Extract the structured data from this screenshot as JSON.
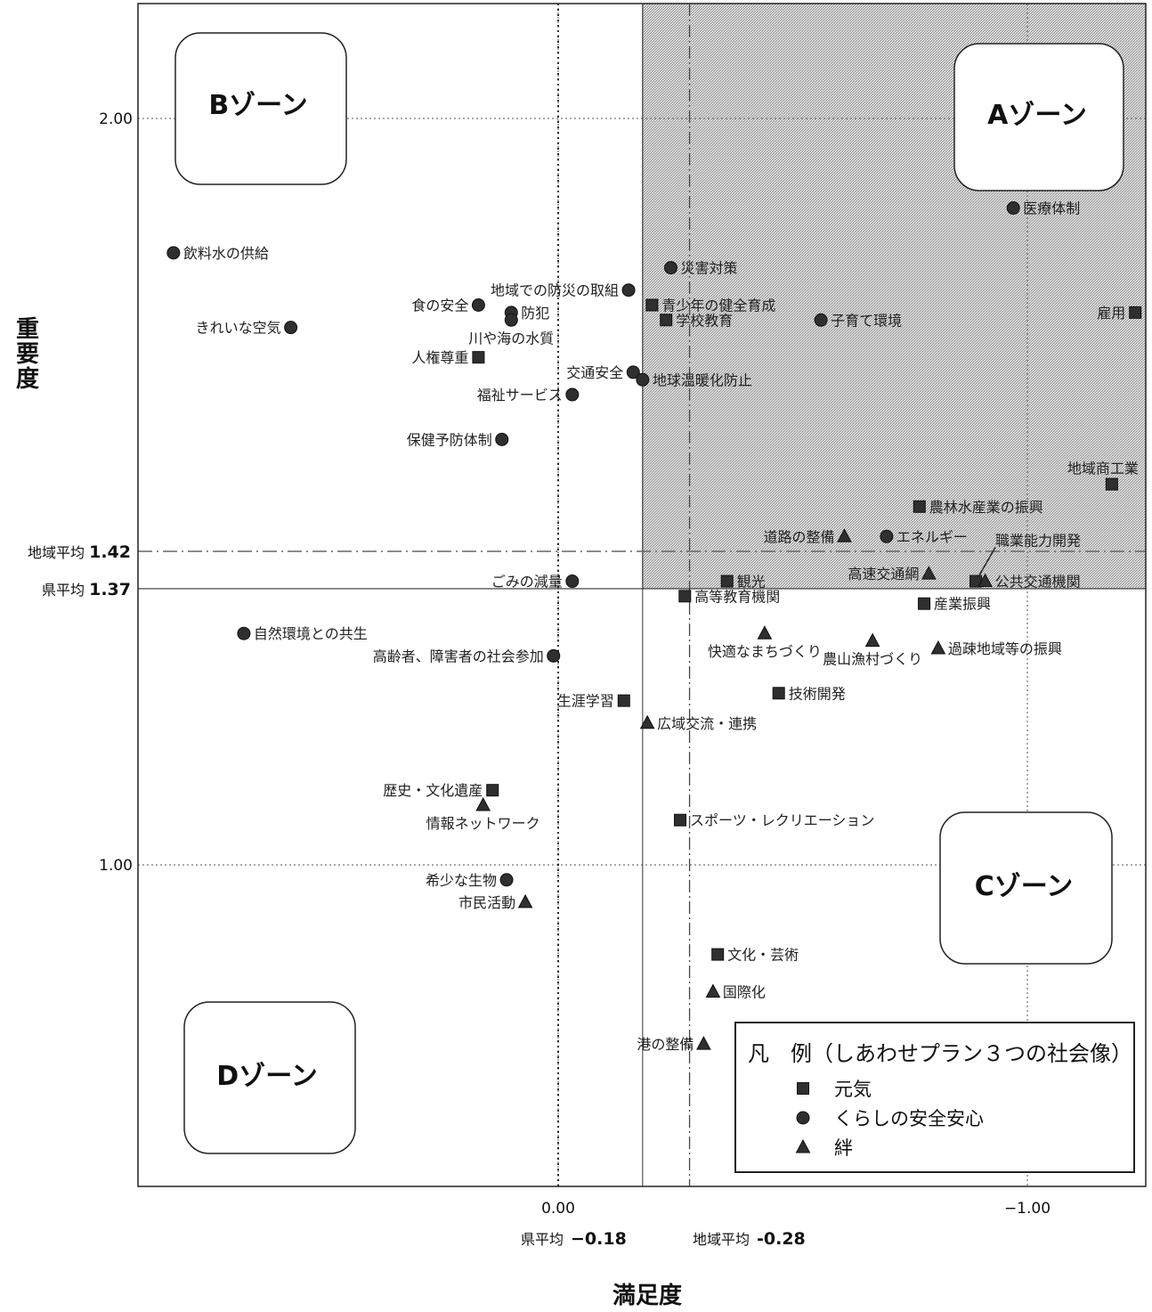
{
  "chart_data": {
    "type": "scatter",
    "xlabel": "満足度",
    "ylabel": "重要度",
    "x_axis_reversed": true,
    "xlim": [
      0.9,
      -1.25
    ],
    "ylim": [
      0.58,
      2.15
    ],
    "x_ticks": [
      {
        "value": 0.0,
        "label": "0.00"
      },
      {
        "value": -1.0,
        "label": "−1.00"
      }
    ],
    "y_ticks": [
      {
        "value": 2.0,
        "label": "2.00"
      },
      {
        "value": 1.0,
        "label": "1.00"
      }
    ],
    "reference_lines": {
      "x": [
        {
          "name": "県平均",
          "value": -0.18,
          "label": "−0.18"
        },
        {
          "name": "地域平均",
          "value": -0.28,
          "label": "-0.28"
        }
      ],
      "y": [
        {
          "name": "地域平均",
          "value": 1.42,
          "label": "1.42"
        },
        {
          "name": "県平均",
          "value": 1.37,
          "label": "1.37"
        }
      ]
    },
    "highlight_region": "A",
    "zones": [
      {
        "id": "A",
        "label": "Aゾーン"
      },
      {
        "id": "B",
        "label": "Bゾーン"
      },
      {
        "id": "C",
        "label": "Cゾーン"
      },
      {
        "id": "D",
        "label": "Dゾーン"
      }
    ],
    "legend": {
      "title": "凡　例（しあわせプラン３つの社会像）",
      "placement": "bottom-right",
      "items": [
        {
          "series": "genki",
          "label": "元気",
          "marker": "square"
        },
        {
          "series": "kurashi",
          "label": "くらしの安全安心",
          "marker": "circle"
        },
        {
          "series": "kizuna",
          "label": "絆",
          "marker": "triangle"
        }
      ]
    },
    "series": [
      {
        "id": "genki",
        "name": "元気",
        "marker": "square",
        "color": "#333333",
        "points": [
          {
            "label": "青少年の健全育成",
            "x": -0.2,
            "y": 1.75,
            "anchor": "right"
          },
          {
            "label": "学校教育",
            "x": -0.23,
            "y": 1.73,
            "anchor": "right"
          },
          {
            "label": "雇用",
            "x": -1.23,
            "y": 1.74,
            "anchor": "left"
          },
          {
            "label": "人権尊重",
            "x": 0.17,
            "y": 1.68,
            "anchor": "left"
          },
          {
            "label": "地域商工業",
            "x": -1.18,
            "y": 1.51,
            "anchor": "above-left"
          },
          {
            "label": "農林水産業の振興",
            "x": -0.77,
            "y": 1.48,
            "anchor": "right"
          },
          {
            "label": "観光",
            "x": -0.36,
            "y": 1.38,
            "anchor": "right"
          },
          {
            "label": "職業能力開発",
            "x": -0.89,
            "y": 1.38,
            "anchor": "leader"
          },
          {
            "label": "高等教育機関",
            "x": -0.27,
            "y": 1.36,
            "anchor": "right"
          },
          {
            "label": "産業振興",
            "x": -0.78,
            "y": 1.35,
            "anchor": "right"
          },
          {
            "label": "技術開発",
            "x": -0.47,
            "y": 1.23,
            "anchor": "right"
          },
          {
            "label": "生涯学習",
            "x": -0.14,
            "y": 1.22,
            "anchor": "left"
          },
          {
            "label": "歴史・文化遺産",
            "x": 0.14,
            "y": 1.1,
            "anchor": "left"
          },
          {
            "label": "スポーツ・レクリエーション",
            "x": -0.26,
            "y": 1.06,
            "anchor": "right"
          },
          {
            "label": "文化・芸術",
            "x": -0.34,
            "y": 0.88,
            "anchor": "right"
          }
        ]
      },
      {
        "id": "kurashi",
        "name": "くらしの安全安心",
        "marker": "circle",
        "color": "#333333",
        "points": [
          {
            "label": "医療体制",
            "x": -0.97,
            "y": 1.88,
            "anchor": "right"
          },
          {
            "label": "飲料水の供給",
            "x": 0.82,
            "y": 1.82,
            "anchor": "right"
          },
          {
            "label": "災害対策",
            "x": -0.24,
            "y": 1.8,
            "anchor": "right"
          },
          {
            "label": "地域での防災の取組",
            "x": -0.15,
            "y": 1.77,
            "anchor": "left"
          },
          {
            "label": "食の安全",
            "x": 0.17,
            "y": 1.75,
            "anchor": "left"
          },
          {
            "label": "防犯",
            "x": 0.1,
            "y": 1.74,
            "anchor": "right"
          },
          {
            "label": "川や海の水質",
            "x": 0.1,
            "y": 1.73,
            "anchor": "below"
          },
          {
            "label": "子育て環境",
            "x": -0.56,
            "y": 1.73,
            "anchor": "right"
          },
          {
            "label": "きれいな空気",
            "x": 0.57,
            "y": 1.72,
            "anchor": "left"
          },
          {
            "label": "交通安全",
            "x": -0.16,
            "y": 1.66,
            "anchor": "left"
          },
          {
            "label": "地球温暖化防止",
            "x": -0.18,
            "y": 1.65,
            "anchor": "right"
          },
          {
            "label": "福祉サービス",
            "x": -0.03,
            "y": 1.63,
            "anchor": "left"
          },
          {
            "label": "保健予防体制",
            "x": 0.12,
            "y": 1.57,
            "anchor": "left"
          },
          {
            "label": "エネルギー",
            "x": -0.7,
            "y": 1.44,
            "anchor": "right"
          },
          {
            "label": "ごみの減量",
            "x": -0.03,
            "y": 1.38,
            "anchor": "left"
          },
          {
            "label": "自然環境との共生",
            "x": 0.67,
            "y": 1.31,
            "anchor": "right"
          },
          {
            "label": "高齢者、障害者の社会参加",
            "x": 0.01,
            "y": 1.28,
            "anchor": "left"
          },
          {
            "label": "希少な生物",
            "x": 0.11,
            "y": 0.98,
            "anchor": "left"
          }
        ]
      },
      {
        "id": "kizuna",
        "name": "絆",
        "marker": "triangle",
        "color": "#333333",
        "points": [
          {
            "label": "道路の整備",
            "x": -0.61,
            "y": 1.44,
            "anchor": "left"
          },
          {
            "label": "高速交通網",
            "x": -0.79,
            "y": 1.39,
            "anchor": "left"
          },
          {
            "label": "公共交通機関",
            "x": -0.91,
            "y": 1.38,
            "anchor": "right"
          },
          {
            "label": "快適なまちづくり",
            "x": -0.44,
            "y": 1.31,
            "anchor": "below"
          },
          {
            "label": "農山漁村づくり",
            "x": -0.67,
            "y": 1.3,
            "anchor": "below"
          },
          {
            "label": "過疎地域等の振興",
            "x": -0.81,
            "y": 1.29,
            "anchor": "right"
          },
          {
            "label": "広域交流・連携",
            "x": -0.19,
            "y": 1.19,
            "anchor": "right"
          },
          {
            "label": "情報ネットワーク",
            "x": 0.16,
            "y": 1.08,
            "anchor": "below"
          },
          {
            "label": "市民活動",
            "x": 0.07,
            "y": 0.95,
            "anchor": "left"
          },
          {
            "label": "国際化",
            "x": -0.33,
            "y": 0.83,
            "anchor": "right"
          },
          {
            "label": "港の整備",
            "x": -0.31,
            "y": 0.76,
            "anchor": "left"
          }
        ]
      }
    ]
  }
}
